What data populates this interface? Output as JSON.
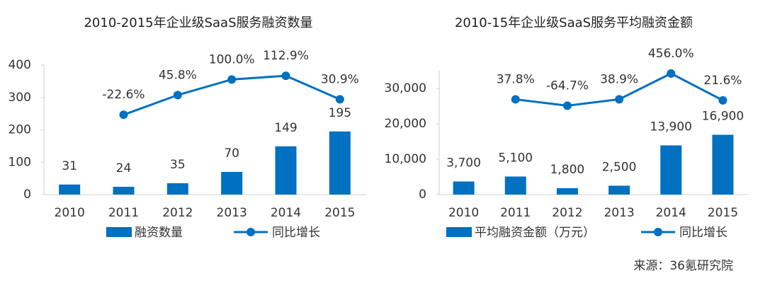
{
  "chart_data": [
    {
      "type": "bar",
      "title": "2010-2015年企业级SaaS服务融资数量",
      "categories": [
        "2010",
        "2011",
        "2012",
        "2013",
        "2014",
        "2015"
      ],
      "series": [
        {
          "name": "融资数量",
          "type": "bar",
          "color": "#0070c0",
          "values": [
            31,
            24,
            35,
            70,
            149,
            195
          ]
        },
        {
          "name": "同比增长",
          "type": "line",
          "axis": "y2",
          "color": "#0070c0",
          "values": [
            null,
            -22.6,
            45.8,
            100.0,
            112.9,
            30.9
          ],
          "value_labels": [
            null,
            "-22.6%",
            "45.8%",
            "100.0%",
            "112.9%",
            "30.9%"
          ]
        }
      ],
      "ylim": [
        0,
        400
      ],
      "yticks": [
        0,
        100,
        200,
        300,
        400
      ],
      "y2lim": [
        -300,
        150
      ],
      "legend": "bottom"
    },
    {
      "type": "bar",
      "title": "2010-15年企业级SaaS服务平均融资金额",
      "categories": [
        "2010",
        "2011",
        "2012",
        "2013",
        "2014",
        "2015"
      ],
      "series": [
        {
          "name": "平均融资金额（万元）",
          "type": "bar",
          "color": "#0070c0",
          "values": [
            3700,
            5100,
            1800,
            2500,
            13900,
            16900
          ],
          "value_labels": [
            "3,700",
            "5,100",
            "1,800",
            "2,500",
            "13,900",
            "16,900"
          ]
        },
        {
          "name": "同比增长",
          "type": "line",
          "axis": "y2",
          "color": "#0070c0",
          "values": [
            null,
            37.8,
            -64.7,
            38.9,
            456.0,
            21.6
          ],
          "value_labels": [
            null,
            "37.8%",
            "-64.7%",
            "38.9%",
            "456.0%",
            "21.6%"
          ]
        }
      ],
      "ylim": [
        0,
        35000
      ],
      "yticks": [
        0,
        {
          "value": 10000,
          "label": "10,000"
        },
        {
          "value": 20000,
          "label": "20,000"
        },
        {
          "value": 30000,
          "label": "30,000"
        }
      ],
      "y2lim": [
        -1500,
        500
      ],
      "legend": "bottom"
    }
  ],
  "source": "来源：36氪研究院"
}
